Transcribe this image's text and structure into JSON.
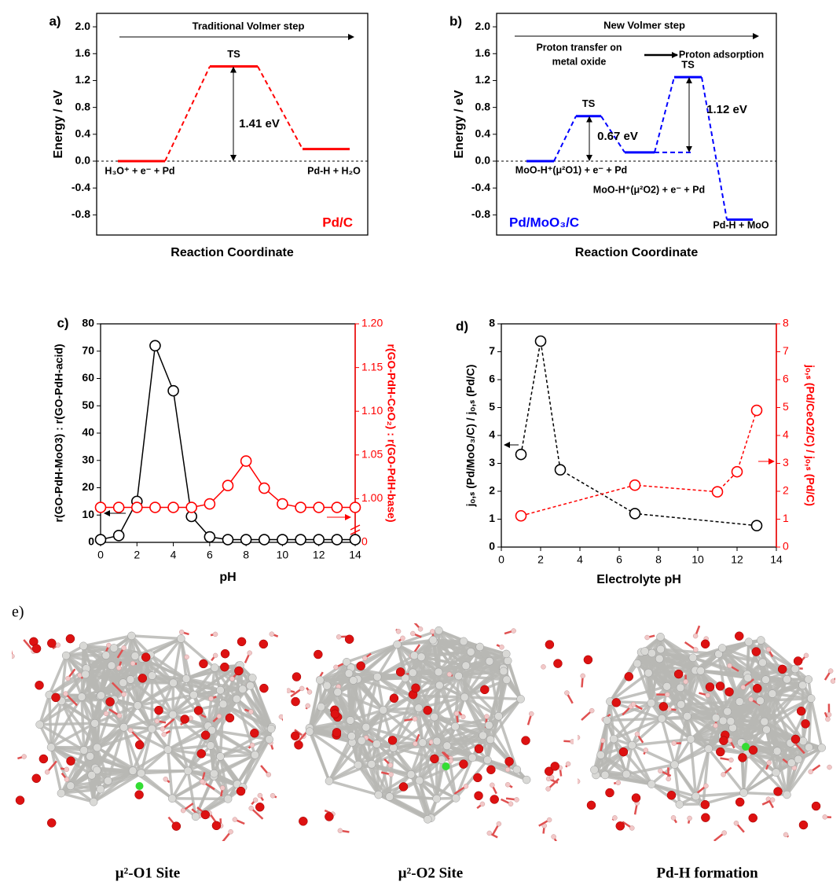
{
  "chart_data": [
    {
      "type": "energy",
      "panel": "a)",
      "title": "Traditional Volmer step",
      "xlabel": "Reaction Coordinate",
      "ylabel": "Energy / eV",
      "ylim": [
        -1.1,
        2.2
      ],
      "yticks": [
        {
          "value": 2.0,
          "label": "2.0"
        },
        {
          "value": 1.6,
          "label": "1.6"
        },
        {
          "value": 1.2,
          "label": "1.2"
        },
        {
          "value": 0.8,
          "label": "0.8"
        },
        {
          "value": 0.4,
          "label": "0.4"
        },
        {
          "value": 0,
          "label": "0.0"
        },
        {
          "value": -0.4,
          "label": "-0.4"
        },
        {
          "value": -0.8,
          "label": "-0.8"
        }
      ],
      "color": "#ff0000",
      "values": [
        0,
        1.41,
        0.18
      ],
      "ts_labels": [
        "TS"
      ],
      "barrier_labels": [
        "1.41 eV"
      ],
      "state_labels": [
        "H₃O⁺ + e⁻ + Pd",
        "Pd-H + H₂O"
      ],
      "system_label": "Pd/C"
    },
    {
      "type": "energy",
      "panel": "b)",
      "title": "New Volmer step",
      "xlabel": "Reaction Coordinate",
      "ylabel": "Energy / eV",
      "ylim": [
        -1.1,
        2.2
      ],
      "yticks": [
        {
          "value": 2.0,
          "label": "2.0"
        },
        {
          "value": 1.6,
          "label": "1.6"
        },
        {
          "value": 1.2,
          "label": "1.2"
        },
        {
          "value": 0.8,
          "label": "0.8"
        },
        {
          "value": 0.4,
          "label": "0.4"
        },
        {
          "value": 0,
          "label": "0.0"
        },
        {
          "value": -0.4,
          "label": "-0.4"
        },
        {
          "value": -0.8,
          "label": "-0.8"
        }
      ],
      "color": "#0000ff",
      "values": [
        0,
        0.67,
        0.13,
        1.25,
        -0.87
      ],
      "step_labels": [
        "Proton transfer on",
        "metal oxide",
        "Proton adsorption"
      ],
      "ts_labels": [
        "TS",
        "TS"
      ],
      "barrier_labels": [
        "0.67 eV",
        "1.12 eV"
      ],
      "state_labels": [
        "MoO-H⁺(μ²O1) + e⁻ + Pd",
        "MoO-H⁺(μ²O2) + e⁻ + Pd",
        "Pd-H + MoO"
      ],
      "system_label": "Pd/MoO₃/C"
    },
    {
      "type": "line",
      "panel": "c)",
      "xlabel": "pH",
      "ylabel": "r(GO-PdH-MoO3) : r(GO-PdH-acid)",
      "y2label": "r(GO-PdH-CeO₂) : r(GO-PdH-base)",
      "xlim": [
        0,
        14
      ],
      "xticks": [
        0,
        2,
        4,
        6,
        8,
        10,
        12,
        14
      ],
      "ylim": [
        0,
        80
      ],
      "yticks": [
        0,
        10,
        20,
        30,
        40,
        50,
        60,
        70,
        80
      ],
      "y2lim": [
        0,
        1.2
      ],
      "y2_axis_break": true,
      "y2ticks": [
        0,
        {
          "value": 1.0,
          "label": "1.00"
        },
        {
          "value": 1.05,
          "label": "1.05"
        },
        {
          "value": 1.1,
          "label": "1.10"
        },
        {
          "value": 1.15,
          "label": "1.15"
        },
        {
          "value": 1.2,
          "label": "1.20"
        }
      ],
      "linestyle": "solid",
      "x": [
        0,
        1,
        2,
        3,
        4,
        5,
        6,
        7,
        8,
        9,
        10,
        11,
        12,
        13,
        14
      ],
      "series": [
        {
          "color": "#000000",
          "values": [
            1,
            2.5,
            15,
            72,
            55.5,
            9.5,
            2,
            1,
            1,
            1,
            1,
            1,
            1,
            1,
            1
          ]
        },
        {
          "color": "#ff0000",
          "axis": "y2",
          "values": [
            0.99,
            0.99,
            0.99,
            0.99,
            0.99,
            0.99,
            0.994,
            1.015,
            1.043,
            1.012,
            0.994,
            0.99,
            0.99,
            0.99,
            0.99
          ]
        }
      ]
    },
    {
      "type": "line",
      "panel": "d)",
      "xlabel": "Electrolyte pH",
      "ylabel": "jₒ,ₛ (Pd/MoO₃/C) / jₒ,ₛ (Pd/C)",
      "y2label": "jₒ,ₛ (Pd/CeO2/C) / jₒ,ₛ (Pd/C)",
      "xlim": [
        0,
        14
      ],
      "xticks": [
        0,
        2,
        4,
        6,
        8,
        10,
        12,
        14
      ],
      "ylim": [
        0,
        8
      ],
      "yticks": [
        0,
        1,
        2,
        3,
        4,
        5,
        6,
        7,
        8
      ],
      "y2lim": [
        0,
        8
      ],
      "y2ticks": [
        0,
        1,
        2,
        3,
        4,
        5,
        6,
        7,
        8
      ],
      "linestyle": "dashed",
      "series": [
        {
          "color": "#000000",
          "x": [
            1,
            2,
            3,
            6.8,
            13
          ],
          "values": [
            3.32,
            7.38,
            2.77,
            1.2,
            0.77
          ]
        },
        {
          "color": "#ff0000",
          "axis": "y2",
          "x": [
            1,
            6.8,
            11,
            12,
            13
          ],
          "values": [
            1.12,
            2.22,
            1.98,
            2.7,
            4.9
          ]
        }
      ]
    }
  ],
  "figure_e": {
    "panel": "e)",
    "captions": [
      "μ²-O1 Site",
      "μ²-O2 Site",
      "Pd-H formation"
    ]
  }
}
